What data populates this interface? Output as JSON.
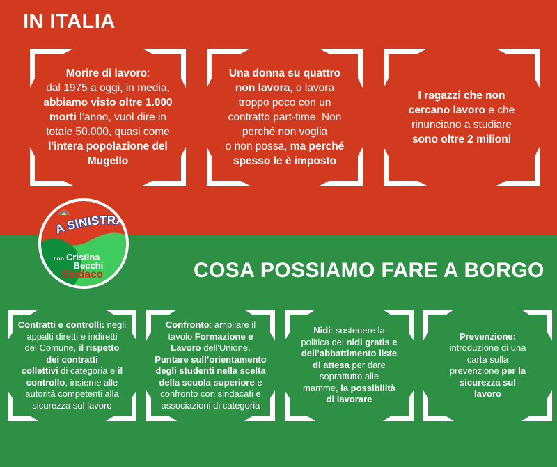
{
  "palette": {
    "red_bg": "#d23a20",
    "green_bg": "#2d9044",
    "white": "#ffffff",
    "logo_red": "#da3c22",
    "logo_light_green": "#3fcb5e",
    "logo_dark_green": "#0f8f3e",
    "logo_blue": "#2d4d9e",
    "sindaco_red": "#e8231a",
    "flag_red": "#e85c3a",
    "flag_blue": "#3b7fd6",
    "flag_yellow": "#f7cf1b"
  },
  "red_section": {
    "title": "IN ITALIA",
    "boxes": [
      {
        "segments": [
          {
            "t": "Morire di lavoro",
            "b": true
          },
          {
            "t": ":",
            "b": false
          },
          {
            "br": true
          },
          {
            "t": "dal 1975 a oggi, in media,",
            "b": false
          },
          {
            "br": true
          },
          {
            "t": "abbiamo visto oltre 1.000",
            "b": true
          },
          {
            "br": true
          },
          {
            "t": "morti",
            "b": true
          },
          {
            "t": " l’anno, vuol dire in",
            "b": false
          },
          {
            "br": true
          },
          {
            "t": "totale 50.000, quasi come",
            "b": false
          },
          {
            "br": true
          },
          {
            "t": "l'intera popolazione del",
            "b": true
          },
          {
            "br": true
          },
          {
            "t": "Mugello",
            "b": true
          }
        ]
      },
      {
        "segments": [
          {
            "t": "Una donna su quattro",
            "b": true
          },
          {
            "br": true
          },
          {
            "t": "non lavora",
            "b": true
          },
          {
            "t": ", o lavora",
            "b": false
          },
          {
            "br": true
          },
          {
            "t": "troppo poco con un",
            "b": false
          },
          {
            "br": true
          },
          {
            "t": "contratto part-time. Non",
            "b": false
          },
          {
            "br": true
          },
          {
            "t": "perché non voglia",
            "b": false
          },
          {
            "br": true
          },
          {
            "t": "o non possa, ",
            "b": false
          },
          {
            "t": "ma perché",
            "b": true
          },
          {
            "br": true
          },
          {
            "t": "spesso le è imposto",
            "b": true
          }
        ]
      },
      {
        "segments": [
          {
            "t": "I ragazzi che non",
            "b": true
          },
          {
            "br": true
          },
          {
            "t": "cercano lavoro",
            "b": true
          },
          {
            "t": " e che",
            "b": false
          },
          {
            "br": true
          },
          {
            "t": "rinunciano a studiare",
            "b": false
          },
          {
            "br": true
          },
          {
            "t": "sono oltre 2 milioni",
            "b": true
          }
        ]
      }
    ]
  },
  "logo": {
    "party": "A SINISTRA",
    "support_prefix": "con",
    "candidate_first": "Cristina",
    "candidate_last": "Becchi",
    "role": "Sindaco"
  },
  "green_section": {
    "title": "COSA POSSIAMO FARE A BORGO",
    "boxes": [
      {
        "segments": [
          {
            "t": "Contratti e controlli:",
            "b": true
          },
          {
            "t": " negli",
            "b": false
          },
          {
            "br": true
          },
          {
            "t": "appalti diretti e indiretti",
            "b": false
          },
          {
            "br": true
          },
          {
            "t": "del Comune, ",
            "b": false
          },
          {
            "t": "il rispetto",
            "b": true
          },
          {
            "br": true
          },
          {
            "t": "dei contratti",
            "b": true
          },
          {
            "br": true
          },
          {
            "t": "collettivi",
            "b": true
          },
          {
            "t": " di categoria e ",
            "b": false
          },
          {
            "t": "il",
            "b": true
          },
          {
            "br": true
          },
          {
            "t": "controllo",
            "b": true
          },
          {
            "t": ", insieme alle",
            "b": false
          },
          {
            "br": true
          },
          {
            "t": "autorità competenti alla",
            "b": false
          },
          {
            "br": true
          },
          {
            "t": "sicurezza sul lavoro",
            "b": false
          }
        ]
      },
      {
        "segments": [
          {
            "t": "Confronto",
            "b": true
          },
          {
            "t": ": ampliare il",
            "b": false
          },
          {
            "br": true
          },
          {
            "t": "tavolo ",
            "b": false
          },
          {
            "t": "Formazione e",
            "b": true
          },
          {
            "br": true
          },
          {
            "t": "Lavoro",
            "b": true
          },
          {
            "t": " dell'Unione.",
            "b": false
          },
          {
            "br": true
          },
          {
            "t": "Puntare sull’orientamento",
            "b": true
          },
          {
            "br": true
          },
          {
            "t": "degli studenti nella scelta",
            "b": true
          },
          {
            "br": true
          },
          {
            "t": "della scuola superiore",
            "b": true
          },
          {
            "t": " e",
            "b": false
          },
          {
            "br": true
          },
          {
            "t": "confronto con sindacati e",
            "b": false
          },
          {
            "br": true
          },
          {
            "t": "associazioni di categoria",
            "b": false
          }
        ]
      },
      {
        "segments": [
          {
            "t": "Nidi",
            "b": true
          },
          {
            "t": ": sostenere la",
            "b": false
          },
          {
            "br": true
          },
          {
            "t": "politica dei ",
            "b": false
          },
          {
            "t": "nidi gratis e",
            "b": true
          },
          {
            "br": true
          },
          {
            "t": "dell’abbattimento liste",
            "b": true
          },
          {
            "br": true
          },
          {
            "t": "di attesa",
            "b": true
          },
          {
            "t": " per dare",
            "b": false
          },
          {
            "br": true
          },
          {
            "t": "soprattutto alle",
            "b": false
          },
          {
            "br": true
          },
          {
            "t": "mamme, ",
            "b": false
          },
          {
            "t": "la possibilità",
            "b": true
          },
          {
            "br": true
          },
          {
            "t": "di lavorare",
            "b": true
          }
        ]
      },
      {
        "segments": [
          {
            "t": "Prevenzione:",
            "b": true
          },
          {
            "br": true
          },
          {
            "t": "introduzione di una",
            "b": false
          },
          {
            "br": true
          },
          {
            "t": "carta sulla",
            "b": false
          },
          {
            "br": true
          },
          {
            "t": "prevenzione ",
            "b": false
          },
          {
            "t": "per la",
            "b": true
          },
          {
            "br": true
          },
          {
            "t": "sicurezza sul",
            "b": true
          },
          {
            "br": true
          },
          {
            "t": "lavoro",
            "b": true
          }
        ]
      }
    ]
  }
}
